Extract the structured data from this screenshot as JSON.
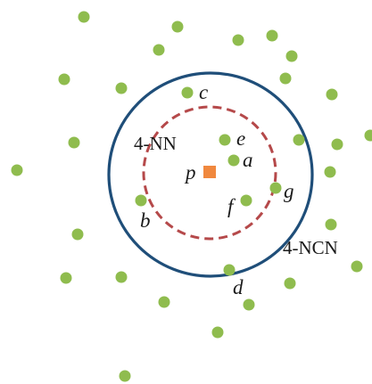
{
  "colors": {
    "point": "#8fbc4e",
    "query": "#f0883e",
    "outer_circle": "#1f4e79",
    "inner_circle": "#b5494a",
    "text": "#1a1a1a",
    "background": "#ffffff"
  },
  "labels": {
    "p": "p",
    "a": "a",
    "b": "b",
    "c": "c",
    "d": "d",
    "e": "e",
    "f": "f",
    "g": "g",
    "nn": "4-NN",
    "ncn": "4-NCN"
  }
}
